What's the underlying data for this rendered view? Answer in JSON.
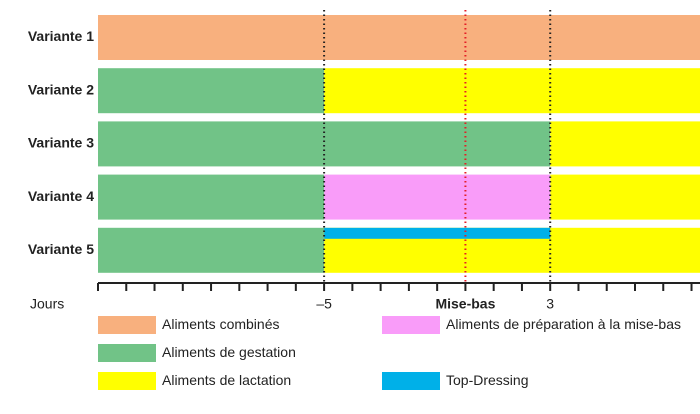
{
  "chart_data": {
    "type": "gantt",
    "categories": [
      "Variante 1",
      "Variante 2",
      "Variante 3",
      "Variante 4",
      "Variante 5"
    ],
    "series": [
      {
        "name": "Aliments combinés",
        "color": "#f8b07e",
        "values": [
          [
            -13,
            8.3
          ],
          null,
          null,
          null,
          null
        ]
      },
      {
        "name": "Aliments de gestation",
        "color": "#71c387",
        "values": [
          null,
          [
            -13,
            -5
          ],
          [
            -13,
            3
          ],
          [
            -13,
            -5
          ],
          [
            -13,
            -5
          ]
        ]
      },
      {
        "name": "Aliments de lactation",
        "color": "#ffff00",
        "values": [
          null,
          [
            -5,
            8.3
          ],
          [
            3,
            8.3
          ],
          [
            3,
            8.3
          ],
          [
            -5,
            8.3
          ]
        ]
      },
      {
        "name": "Aliments de préparation à la mise-bas",
        "color": "#f99cf9",
        "values": [
          null,
          null,
          null,
          [
            -5,
            3
          ],
          null
        ]
      },
      {
        "name": "Top-Dressing",
        "color": "#00b0e8",
        "thin": true,
        "values": [
          null,
          null,
          null,
          null,
          [
            -5,
            3
          ]
        ]
      }
    ],
    "xlabel": "Jours",
    "xlim": [
      -13,
      8.3
    ],
    "xticks": [
      {
        "value": -5,
        "label": "–5"
      },
      {
        "value": 0,
        "label": "Mise-bas"
      },
      3
    ],
    "xtick_colors": [
      "#222222",
      "#e41e26",
      "#222222"
    ],
    "xminor_ticks": [
      -13,
      -12,
      -11,
      -10,
      -9,
      -8,
      -7,
      -6,
      -5,
      -4,
      -3,
      -2,
      -1,
      0,
      1,
      2,
      3,
      4,
      5,
      6,
      7,
      8
    ],
    "grid": true
  }
}
